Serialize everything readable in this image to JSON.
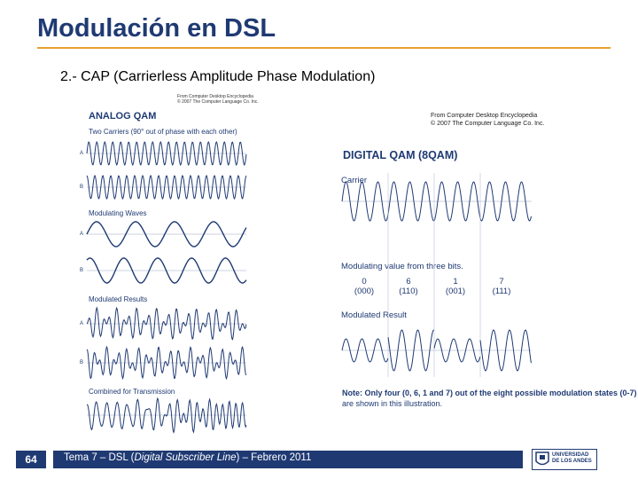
{
  "slide": {
    "title": "Modulación en DSL",
    "subtitle": "2.- CAP (Carrierless Amplitude Phase Modulation)"
  },
  "analog_figure": {
    "source_line1": "From Computer Desktop Encyclopedia",
    "source_line2": "© 2007 The Computer Language Co. Inc.",
    "heading": "ANALOG QAM",
    "section_carriers": "Two Carriers (90° out of phase with each other)",
    "section_modulating": "Modulating Waves",
    "section_modulated": "Modulated Results",
    "section_combined": "Combined for Transmission",
    "label_a": "A",
    "label_b": "B"
  },
  "digital_figure": {
    "source_line1": "From Computer Desktop Encyclopedia",
    "source_line2": "© 2007 The Computer Language Co. Inc.",
    "heading": "DIGITAL QAM (8QAM)",
    "carrier_label": "Carrier",
    "modulating_label": "Modulating value from three bits.",
    "values": [
      {
        "decimal": "0",
        "binary": "(000)"
      },
      {
        "decimal": "6",
        "binary": "(110)"
      },
      {
        "decimal": "1",
        "binary": "(001)"
      },
      {
        "decimal": "7",
        "binary": "(111)"
      }
    ],
    "result_label": "Modulated Result",
    "note_bold": "Note: Only four (0, 6, 1 and 7) out of the eight possible modulation states (0-7)",
    "note_rest": "are shown in this illustration."
  },
  "footer": {
    "page_number": "64",
    "text_prefix": "Tema 7 – DSL (",
    "text_italic": "Digital Subscriber Line",
    "text_suffix": ") – Febrero 2011",
    "logo_line1": "UNIVERSIDAD",
    "logo_line2": "DE LOS ANDES"
  },
  "colors": {
    "title": "#1f3a73",
    "rule": "#e8a030",
    "wave": "#1f3a73",
    "footer_bg": "#1f3a73"
  }
}
